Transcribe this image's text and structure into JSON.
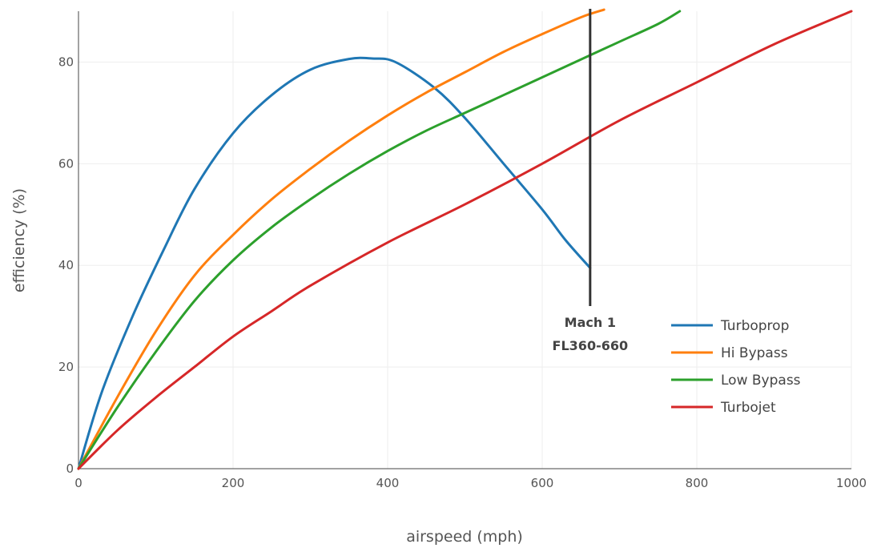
{
  "chart_data": {
    "type": "line",
    "title": "",
    "xlabel": "airspeed (mph)",
    "ylabel": "efficiency (%)",
    "xlim": [
      0,
      1000
    ],
    "ylim": [
      0,
      90
    ],
    "x_ticks": [
      0,
      200,
      400,
      600,
      800,
      1000
    ],
    "x_tick_labels": [
      "0",
      "200",
      "400",
      "600",
      "800",
      "1000"
    ],
    "y_ticks": [
      0,
      20,
      40,
      60,
      80
    ],
    "y_tick_labels": [
      "0",
      "20",
      "40",
      "60",
      "80"
    ],
    "grid": true,
    "legend_position": "bottom-right",
    "series": [
      {
        "name": "Turboprop",
        "color": "#1f77b4",
        "x": [
          0,
          30,
          70,
          110,
          150,
          200,
          250,
          300,
          350,
          380,
          410,
          460,
          500,
          550,
          600,
          630,
          662
        ],
        "y": [
          0,
          15,
          30,
          43,
          55,
          66,
          73.5,
          78.5,
          80.6,
          80.7,
          80,
          75,
          69,
          60,
          51,
          45,
          39.5
        ]
      },
      {
        "name": "Hi Bypass",
        "color": "#ff7f0e",
        "x": [
          0,
          50,
          100,
          150,
          200,
          250,
          300,
          350,
          400,
          450,
          500,
          550,
          600,
          650,
          680
        ],
        "y": [
          0,
          14,
          27,
          38,
          46,
          53,
          59,
          64.5,
          69.5,
          74,
          78,
          82,
          85.5,
          88.8,
          90.3
        ]
      },
      {
        "name": "Low Bypass",
        "color": "#2ca02c",
        "x": [
          0,
          50,
          100,
          150,
          200,
          250,
          300,
          350,
          400,
          450,
          500,
          550,
          600,
          650,
          700,
          750,
          778
        ],
        "y": [
          0,
          12,
          23,
          33,
          41,
          47.5,
          53,
          58,
          62.5,
          66.5,
          70,
          73.5,
          77,
          80.5,
          84,
          87.5,
          90
        ]
      },
      {
        "name": "Turbojet",
        "color": "#d62728",
        "x": [
          0,
          50,
          100,
          150,
          200,
          250,
          300,
          400,
          500,
          600,
          700,
          800,
          900,
          1000
        ],
        "y": [
          0,
          7.5,
          14,
          20,
          26,
          31,
          36,
          44.5,
          52,
          60,
          68.5,
          76,
          83.5,
          90
        ]
      }
    ],
    "annotations": [
      {
        "type": "vertical-line",
        "x": 662,
        "y_range": [
          32,
          90
        ],
        "color": "#333333",
        "label_lines": [
          "Mach 1",
          "FL360-660"
        ]
      }
    ]
  }
}
